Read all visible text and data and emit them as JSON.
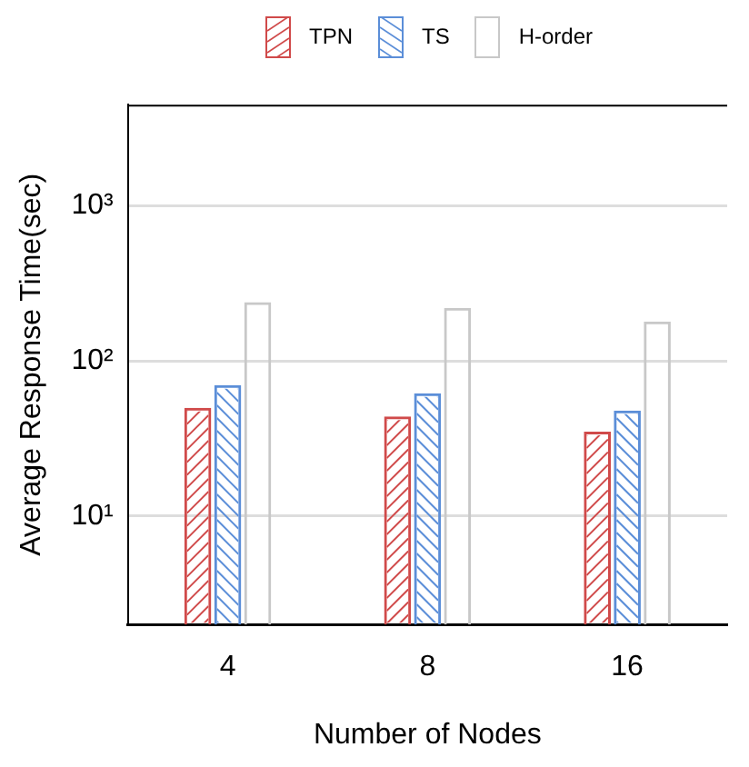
{
  "chart_data": {
    "type": "bar",
    "xlabel": "Number of Nodes",
    "ylabel": "Average Response Time(sec)",
    "categories": [
      "4",
      "8",
      "16"
    ],
    "series": [
      {
        "name": "TPN",
        "color": "#d04a4a",
        "values": [
          50,
          44,
          35
        ]
      },
      {
        "name": "TS",
        "color": "#5b8ed8",
        "values": [
          70,
          62,
          48
        ]
      },
      {
        "name": "H-order",
        "color": "#c8c8c8",
        "values": [
          240,
          220,
          180
        ]
      }
    ],
    "log": "y",
    "ylim": [
      2,
      4500
    ],
    "yticks": [
      {
        "value": 10,
        "label": "10¹"
      },
      {
        "value": 100,
        "label": "10²"
      },
      {
        "value": 1000,
        "label": "10³"
      }
    ],
    "grid": "y",
    "legend": "top"
  }
}
